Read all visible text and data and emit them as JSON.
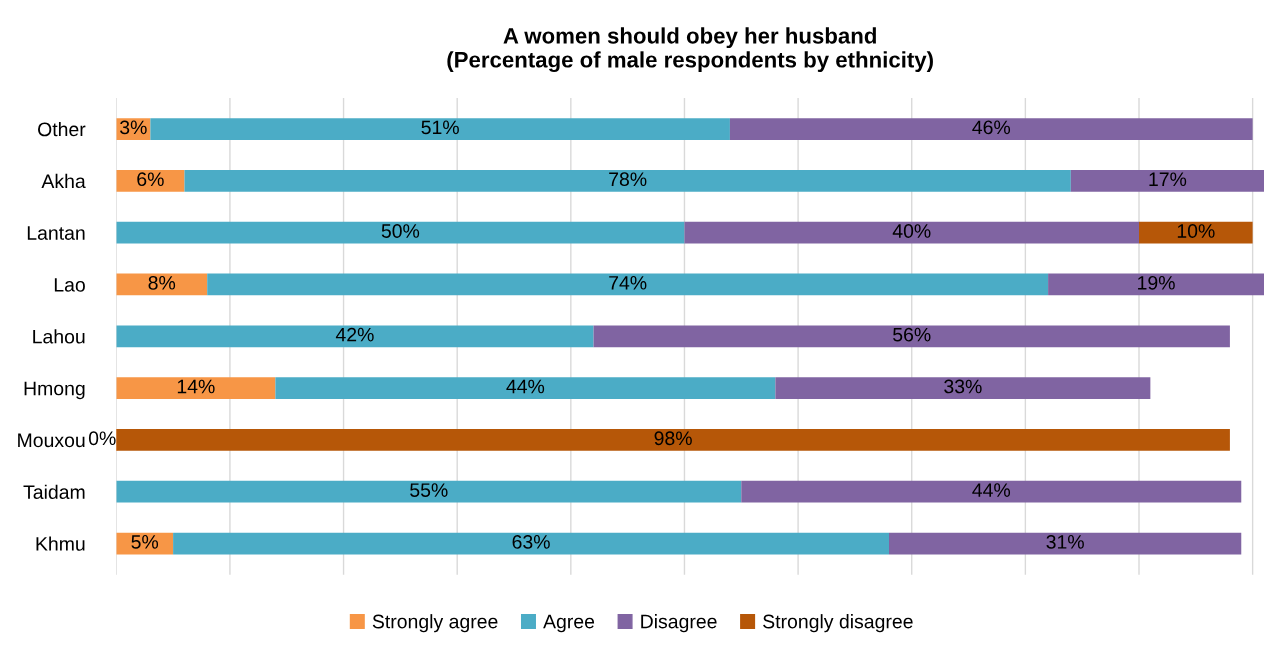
{
  "chart_data": {
    "type": "bar",
    "orientation": "horizontal",
    "stacked": true,
    "title": "A women should obey her husband\n(Percentage of male respondents by ethnicity)",
    "categories": [
      "Other",
      "Akha",
      "Lantan",
      "Lao",
      "Lahou",
      "Hmong",
      "Mouxou",
      "Taidam",
      "Khmu"
    ],
    "series": [
      {
        "name": "Strongly agree",
        "color": "#f79646",
        "values": [
          3,
          6,
          null,
          8,
          null,
          14,
          0,
          null,
          5
        ],
        "value_labels": [
          "3%",
          "6%",
          null,
          "8%",
          null,
          "14%",
          "0%",
          null,
          "5%"
        ]
      },
      {
        "name": "Agree",
        "color": "#4bacc6",
        "values": [
          51,
          78,
          50,
          74,
          42,
          44,
          null,
          55,
          63
        ],
        "value_labels": [
          "51%",
          "78%",
          "50%",
          "74%",
          "42%",
          "44%",
          null,
          "55%",
          "63%"
        ]
      },
      {
        "name": "Disagree",
        "color": "#8064a2",
        "values": [
          46,
          17,
          40,
          19,
          56,
          33,
          null,
          44,
          31
        ],
        "value_labels": [
          "46%",
          "17%",
          "40%",
          "19%",
          "56%",
          "33%",
          null,
          "44%",
          "31%"
        ]
      },
      {
        "name": "Strongly disagree",
        "color": "#b65708",
        "values": [
          null,
          null,
          10,
          null,
          null,
          null,
          98,
          null,
          null
        ],
        "value_labels": [
          null,
          null,
          "10%",
          null,
          null,
          null,
          "98%",
          null,
          null
        ]
      }
    ],
    "xlim": [
      0,
      101
    ],
    "xticks": [
      {
        "value": 0,
        "label": null
      },
      {
        "value": 10,
        "label": null
      },
      {
        "value": 20,
        "label": null
      },
      {
        "value": 30,
        "label": null
      },
      {
        "value": 40,
        "label": null
      },
      {
        "value": 50,
        "label": null
      },
      {
        "value": 60,
        "label": null
      },
      {
        "value": 70,
        "label": null
      },
      {
        "value": 80,
        "label": null
      },
      {
        "value": 90,
        "label": null
      },
      {
        "value": 100,
        "label": null
      }
    ],
    "tick_labels": "y",
    "grid": "x",
    "legend": "bottom"
  }
}
